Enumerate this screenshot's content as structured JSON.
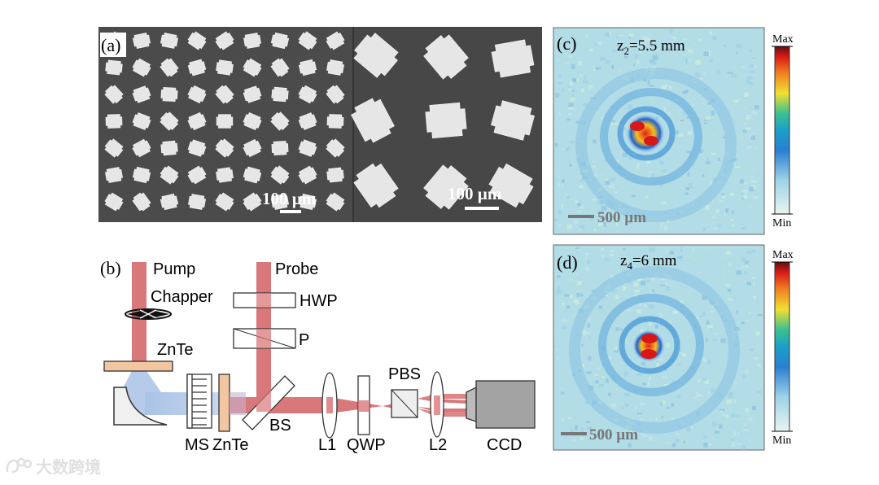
{
  "panels": {
    "a": {
      "label": "(a)",
      "scalebar_left": "100 µm",
      "scalebar_right": "100 µm"
    },
    "b": {
      "label": "(b)",
      "components": {
        "pump": "Pump",
        "probe": "Probe",
        "chopper": "Chapper",
        "hwp": "HWP",
        "polarizer": "P",
        "znte_top": "ZnTe",
        "ms": "MS",
        "znte_bottom": "ZnTe",
        "bs": "BS",
        "l1": "L1",
        "qwp": "QWP",
        "pbs": "PBS",
        "l2": "L2",
        "ccd": "CCD"
      }
    },
    "c": {
      "label": "(c)",
      "title_var": "z",
      "title_sub": "2",
      "title_val": "=5.5 mm",
      "scalebar": "500 µm",
      "cbar_max": "Max",
      "cbar_min": "Min"
    },
    "d": {
      "label": "(d)",
      "title_var": "z",
      "title_sub": "4",
      "title_val": "=6 mm",
      "scalebar": "500 µm",
      "cbar_max": "Max",
      "cbar_min": "Min"
    }
  },
  "watermark": {
    "text": "大数跨境",
    "icon": "brand-logo-icon"
  },
  "colors": {
    "sem_bg": "#4a4a4a",
    "pump_beam": "#d9787a",
    "thz_beam": "#a9c2e6",
    "crystal": "#f2c6a0",
    "map_bg": "#a8d8e6",
    "hot": "#e0201a"
  }
}
